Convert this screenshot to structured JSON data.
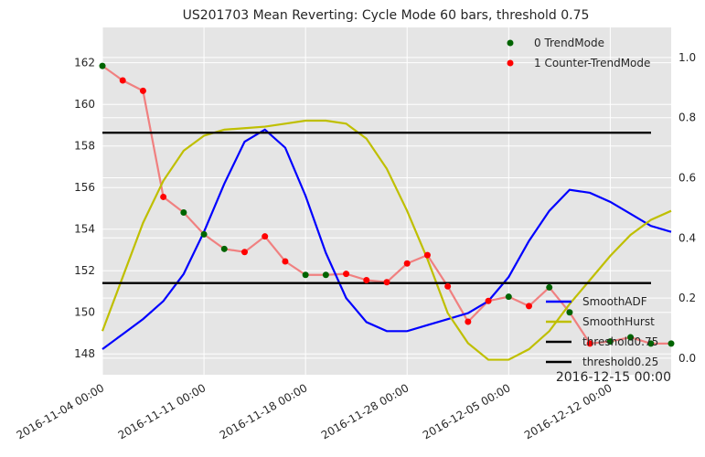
{
  "chart_data": {
    "type": "line",
    "title": "US201703 Mean Reverting: Cycle Mode 60 bars, threshold 0.75",
    "corner_label": "2016-12-15 00:00",
    "x_tick_labels": [
      "2016-11-04 00:00",
      "2016-11-11 00:00",
      "2016-11-18 00:00",
      "2016-11-28 00:00",
      "2016-12-05 00:00",
      "2016-12-12 00:00"
    ],
    "x_tick_index": [
      0,
      5,
      10,
      15,
      20,
      25
    ],
    "x_range": [
      0,
      28
    ],
    "y_left": {
      "ticks": [
        148,
        150,
        152,
        154,
        156,
        158,
        160,
        162
      ],
      "range": [
        147.0,
        163.7
      ]
    },
    "y_right": {
      "ticks": [
        0.0,
        0.2,
        0.4,
        0.6,
        0.8,
        1.0
      ],
      "range": [
        -0.055,
        1.1
      ]
    },
    "grid": true,
    "price": [
      161.85,
      161.15,
      160.65,
      155.55,
      154.8,
      153.75,
      153.05,
      152.9,
      153.65,
      152.45,
      151.8,
      151.8,
      151.85,
      151.55,
      151.45,
      152.35,
      152.75,
      151.25,
      149.55,
      150.55,
      150.75,
      150.3,
      151.2,
      150.0,
      148.5,
      148.6,
      148.8,
      148.5,
      148.5
    ],
    "trend_mode": [
      0,
      1,
      1,
      1,
      0,
      0,
      0,
      1,
      1,
      1,
      0,
      0,
      1,
      1,
      1,
      1,
      1,
      1,
      1,
      1,
      0,
      1,
      0,
      0,
      1,
      0,
      0,
      0,
      0
    ],
    "series": [
      {
        "name": "SmoothADF",
        "axis": "right",
        "color": "#0000ff",
        "values": [
          0.03,
          0.08,
          0.13,
          0.19,
          0.28,
          0.42,
          0.58,
          0.72,
          0.76,
          0.7,
          0.54,
          0.35,
          0.2,
          0.12,
          0.09,
          0.09,
          0.11,
          0.13,
          0.15,
          0.19,
          0.27,
          0.39,
          0.49,
          0.56,
          0.55,
          0.52,
          0.48,
          0.44,
          0.42
        ]
      },
      {
        "name": "SmoothHurst",
        "axis": "right",
        "color": "#bfbf00",
        "values": [
          0.09,
          0.27,
          0.45,
          0.59,
          0.69,
          0.74,
          0.76,
          0.765,
          0.77,
          0.78,
          0.79,
          0.79,
          0.78,
          0.73,
          0.63,
          0.49,
          0.33,
          0.15,
          0.05,
          -0.005,
          -0.005,
          0.03,
          0.09,
          0.18,
          0.26,
          0.34,
          0.41,
          0.46,
          0.49
        ]
      },
      {
        "name": "threshold0.75",
        "axis": "right",
        "color": "#000000",
        "values": [
          0.75
        ]
      },
      {
        "name": "threshold0.25",
        "axis": "right",
        "color": "#000000",
        "values": [
          0.25
        ]
      }
    ],
    "legend_top": [
      {
        "label": "0 TrendMode",
        "color": "#006400"
      },
      {
        "label": "1 Counter-TrendMode",
        "color": "#ff0000"
      }
    ],
    "legend_top_position": "top-right",
    "legend_bottom_position": "bottom-right",
    "colors": {
      "plot_bg": "#e5e5e5",
      "grid": "#ffffff",
      "price_line": "#f08080",
      "trend": "#006400",
      "counter_trend": "#ff0000"
    }
  }
}
